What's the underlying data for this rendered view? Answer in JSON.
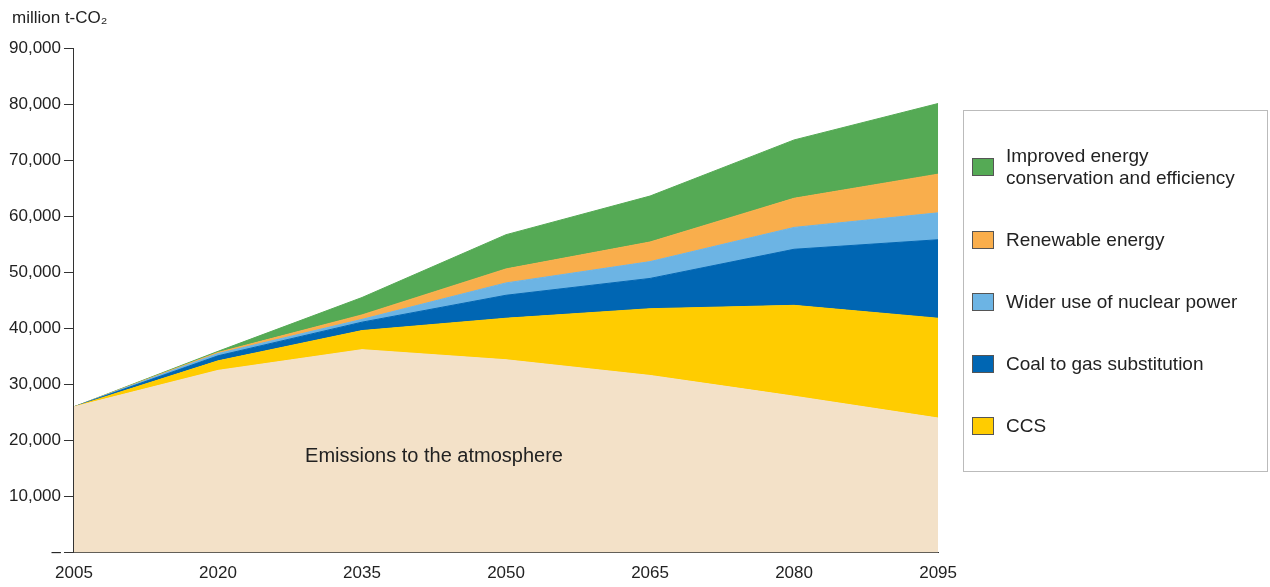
{
  "chart_data": {
    "type": "area",
    "ylabel": "million t-CO₂",
    "stacked": true,
    "x": [
      2005,
      2020,
      2035,
      2050,
      2065,
      2080,
      2095
    ],
    "series": [
      {
        "name": "Emissions to the atmosphere",
        "color": "#f3e1c8",
        "values": [
          26000,
          32500,
          36200,
          34400,
          31600,
          27900,
          24000
        ]
      },
      {
        "name": "CCS",
        "color": "#ffcc00",
        "values": [
          0,
          1700,
          3400,
          7400,
          11900,
          16200,
          17800
        ]
      },
      {
        "name": "Coal to gas substitution",
        "color": "#0066b3",
        "values": [
          0,
          900,
          1500,
          4100,
          5400,
          10000,
          14000
        ]
      },
      {
        "name": "Wider use of nuclear power",
        "color": "#6cb4e4",
        "values": [
          0,
          400,
          500,
          2200,
          3000,
          3900,
          4800
        ]
      },
      {
        "name": "Renewable energy",
        "color": "#f9ae4c",
        "values": [
          0,
          200,
          800,
          2500,
          3500,
          5200,
          6900
        ]
      },
      {
        "name": "Improved energy conservation and efficiency",
        "color": "#55aa55",
        "values": [
          0,
          200,
          3100,
          6100,
          8200,
          10400,
          12600
        ]
      }
    ],
    "xlim": [
      2005,
      2095
    ],
    "xticks": [
      2005,
      2020,
      2035,
      2050,
      2065,
      2080,
      2095
    ],
    "ylim": [
      0,
      90000
    ],
    "yticks": [
      {
        "value": 0,
        "label": "–"
      },
      {
        "value": 10000,
        "label": "10,000"
      },
      {
        "value": 20000,
        "label": "20,000"
      },
      {
        "value": 30000,
        "label": "30,000"
      },
      {
        "value": 40000,
        "label": "40,000"
      },
      {
        "value": 50000,
        "label": "50,000"
      },
      {
        "value": 60000,
        "label": "60,000"
      },
      {
        "value": 70000,
        "label": "70,000"
      },
      {
        "value": 80000,
        "label": "80,000"
      },
      {
        "value": 90000,
        "label": "90,000"
      }
    ],
    "grid": false,
    "legend": "right"
  }
}
